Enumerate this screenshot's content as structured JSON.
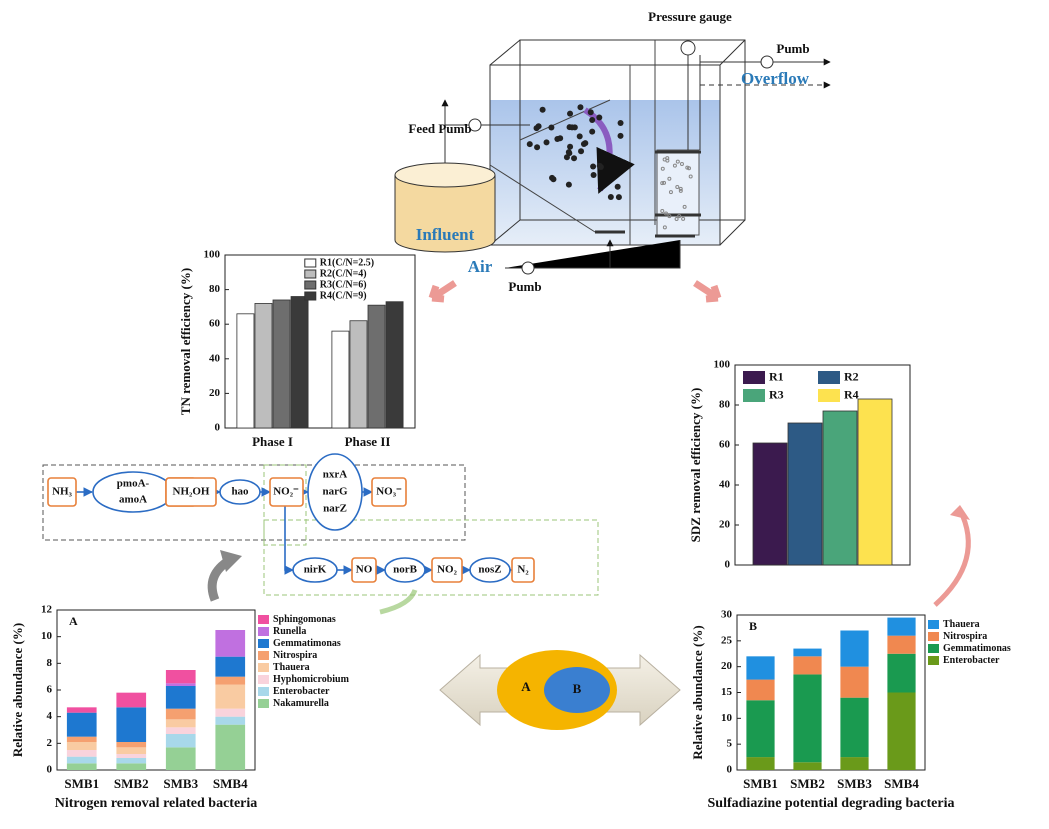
{
  "chart_data": [
    {
      "type": "bar",
      "y_label": "TN removal efficiency (%)",
      "categories": [
        "Phase I",
        "Phase II"
      ],
      "series": [
        {
          "name": "R1(C/N=2.5)",
          "color": "#ffffff",
          "values": [
            66,
            56
          ]
        },
        {
          "name": "R2(C/N=4)",
          "color": "#bdbdbd",
          "values": [
            72,
            62
          ]
        },
        {
          "name": "R3(C/N=6)",
          "color": "#6e6e6e",
          "values": [
            74,
            71
          ]
        },
        {
          "name": "R4(C/N=9)",
          "color": "#3a3a3a",
          "values": [
            76,
            73
          ]
        }
      ],
      "ylim": [
        0,
        100
      ],
      "yticks": [
        0,
        20,
        40,
        60,
        80,
        100
      ],
      "legend": "upper right"
    },
    {
      "type": "bar",
      "y_label": "SDZ removal efficiency (%)",
      "categories": [
        null
      ],
      "series": [
        {
          "name": "R1",
          "color": "#3b1a4e",
          "values": [
            61
          ]
        },
        {
          "name": "R2",
          "color": "#2d5a85",
          "values": [
            71
          ]
        },
        {
          "name": "R3",
          "color": "#4aa57a",
          "values": [
            77
          ]
        },
        {
          "name": "R4",
          "color": "#fde24f",
          "values": [
            83
          ]
        }
      ],
      "ylim": [
        0,
        100
      ],
      "yticks": [
        0,
        20,
        40,
        60,
        80,
        100
      ],
      "legend": "upper left",
      "legend_columns": 2
    },
    {
      "type": "stacked_bar",
      "panel_label": "A",
      "y_label": "Relative abundance (%)",
      "x_label": "Nitrogen removal related bacteria",
      "categories": [
        "SMB1",
        "SMB2",
        "SMB3",
        "SMB4"
      ],
      "series": [
        {
          "name": "Nakamurella",
          "color": "#95d095",
          "values": [
            0.5,
            0.5,
            1.7,
            3.4
          ]
        },
        {
          "name": "Enterobacter",
          "color": "#a8d8ea",
          "values": [
            0.5,
            0.4,
            1.0,
            0.6
          ]
        },
        {
          "name": "Hyphomicrobium",
          "color": "#f9d3dc",
          "values": [
            0.5,
            0.3,
            0.5,
            0.6
          ]
        },
        {
          "name": "Thauera",
          "color": "#f9cba2",
          "values": [
            0.6,
            0.5,
            0.6,
            1.8
          ]
        },
        {
          "name": "Nitrospira",
          "color": "#f5a070",
          "values": [
            0.4,
            0.4,
            0.8,
            0.6
          ]
        },
        {
          "name": "Gemmatimonas",
          "color": "#1e78d0",
          "values": [
            1.8,
            2.6,
            1.7,
            1.5
          ]
        },
        {
          "name": "Runella",
          "color": "#c070e0",
          "values": [
            0,
            0,
            0.2,
            2.0
          ]
        },
        {
          "name": "Sphingomonas",
          "color": "#f050a0",
          "values": [
            0.4,
            1.1,
            1.0,
            0
          ]
        }
      ],
      "ylim": [
        0,
        12
      ],
      "yticks": [
        0,
        2,
        4,
        6,
        8,
        10,
        12
      ],
      "legend": "outside right"
    },
    {
      "type": "stacked_bar",
      "panel_label": "B",
      "y_label": "Relative abundance (%)",
      "x_label": "Sulfadiazine potential degrading bacteria",
      "categories": [
        "SMB1",
        "SMB2",
        "SMB3",
        "SMB4"
      ],
      "series": [
        {
          "name": "Enterobacter",
          "color": "#6a9a1a",
          "values": [
            2.5,
            1.5,
            2.5,
            15
          ]
        },
        {
          "name": "Gemmatimonas",
          "color": "#1a9a50",
          "values": [
            11,
            17,
            11.5,
            7.5
          ]
        },
        {
          "name": "Nitrospira",
          "color": "#f08850",
          "values": [
            4,
            3.5,
            6,
            3.5
          ]
        },
        {
          "name": "Thauera",
          "color": "#2090e0",
          "values": [
            4.5,
            1.5,
            7,
            3.5
          ]
        }
      ],
      "ylim": [
        0,
        30
      ],
      "yticks": [
        0,
        5,
        10,
        15,
        20,
        25,
        30
      ],
      "legend": "outside right"
    }
  ],
  "reactor": {
    "pressure_gauge": "Pressure gauge",
    "pump_out": "Pumb",
    "overflow": "Overflow",
    "feed_pump": "Feed Pumb",
    "influent": "Influent",
    "air": "Air",
    "pump_air": "Pumb"
  },
  "pathway": {
    "nh3": "NH₃",
    "pmoa": [
      "pmoA-",
      "amoA"
    ],
    "nh2oh": "NH₂OH",
    "hao": "hao",
    "no2": "NO₂⁻",
    "nxr": [
      "nxrA",
      "narG",
      "narZ"
    ],
    "no3": "NO₃⁻",
    "nirk": "nirK",
    "no": "NO",
    "norb": "norB",
    "n2o": "NO₂",
    "nosz": "nosZ",
    "n2": "N₂"
  },
  "venn": {
    "outer": "A",
    "inner": "B"
  }
}
